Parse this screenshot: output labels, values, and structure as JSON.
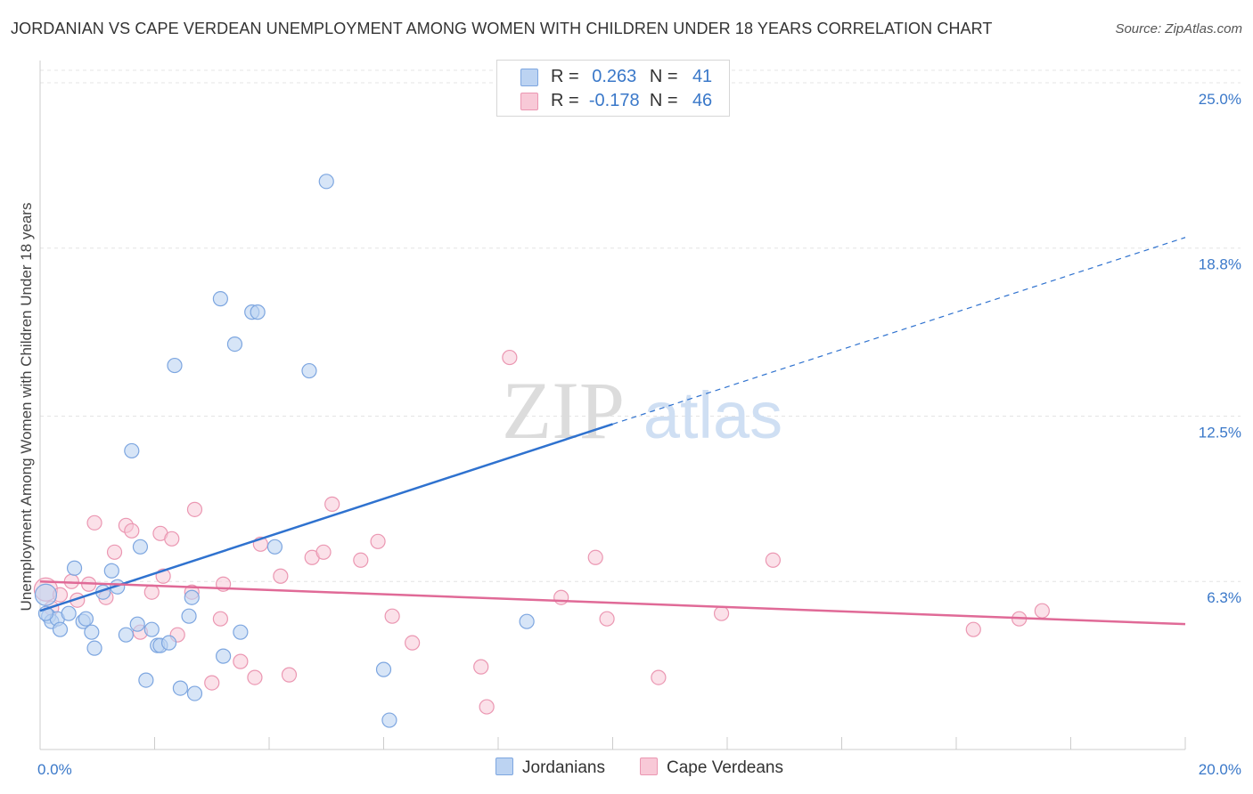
{
  "title": "JORDANIAN VS CAPE VERDEAN UNEMPLOYMENT AMONG WOMEN WITH CHILDREN UNDER 18 YEARS CORRELATION CHART",
  "source": "Source: ZipAtlas.com",
  "watermark": {
    "zip": "ZIP",
    "atlas": "atlas"
  },
  "legend": {
    "rows": [
      {
        "r_label": "R =",
        "r_value": "0.263",
        "n_label": "N =",
        "n_value": "41"
      },
      {
        "r_label": "R =",
        "r_value": "-0.178",
        "n_label": "N =",
        "n_value": "46"
      }
    ]
  },
  "bottom_legend": {
    "jordanians": "Jordanians",
    "cape_verdeans": "Cape Verdeans"
  },
  "colors": {
    "jordanian_fill": "#bcd3f2",
    "jordanian_stroke": "#7da6e0",
    "jordanian_line": "#2f72cf",
    "capeverdean_fill": "#f8c9d7",
    "capeverdean_stroke": "#eb97b2",
    "capeverdean_line": "#e06a97",
    "tick_label": "#3a78c9",
    "grid": "#e4e4e4"
  },
  "chart_data": {
    "type": "scatter",
    "title": "JORDANIAN VS CAPE VERDEAN UNEMPLOYMENT AMONG WOMEN WITH CHILDREN UNDER 18 YEARS CORRELATION CHART",
    "xlabel": "",
    "ylabel": "Unemployment Among Women with Children Under 18 years",
    "xlim": [
      0,
      20
    ],
    "ylim": [
      0,
      25.6
    ],
    "x_tick_labels": [
      "0.0%",
      "20.0%"
    ],
    "y_ticks": [
      6.3,
      12.5,
      18.8,
      25.0
    ],
    "y_tick_labels": [
      "6.3%",
      "12.5%",
      "18.8%",
      "25.0%"
    ],
    "grid": "horizontal dashed",
    "legend_placement": "top-center",
    "series": [
      {
        "name": "Jordanians",
        "r": 0.263,
        "n": 41,
        "trend": {
          "x0": 0,
          "y0": 5.2,
          "x1": 10,
          "y1": 12.2,
          "extended_x1": 20,
          "extended_y1": 19.2
        },
        "points": [
          [
            0.1,
            5.8
          ],
          [
            0.15,
            5.0
          ],
          [
            0.2,
            4.8
          ],
          [
            0.3,
            4.9
          ],
          [
            0.35,
            4.5
          ],
          [
            0.5,
            5.1
          ],
          [
            0.6,
            6.8
          ],
          [
            0.75,
            4.8
          ],
          [
            0.8,
            4.9
          ],
          [
            0.9,
            4.4
          ],
          [
            0.95,
            3.8
          ],
          [
            1.1,
            5.9
          ],
          [
            1.25,
            6.7
          ],
          [
            1.35,
            6.1
          ],
          [
            1.5,
            4.3
          ],
          [
            1.6,
            11.2
          ],
          [
            1.7,
            4.7
          ],
          [
            1.75,
            7.6
          ],
          [
            1.85,
            2.6
          ],
          [
            1.95,
            4.5
          ],
          [
            2.05,
            3.9
          ],
          [
            2.1,
            3.9
          ],
          [
            2.25,
            4.0
          ],
          [
            2.35,
            14.4
          ],
          [
            2.45,
            2.3
          ],
          [
            2.6,
            5.0
          ],
          [
            2.65,
            5.7
          ],
          [
            2.7,
            2.1
          ],
          [
            3.15,
            16.9
          ],
          [
            3.2,
            3.5
          ],
          [
            3.4,
            15.2
          ],
          [
            3.5,
            4.4
          ],
          [
            3.7,
            16.4
          ],
          [
            3.8,
            16.4
          ],
          [
            4.1,
            7.6
          ],
          [
            4.7,
            14.2
          ],
          [
            5.0,
            21.3
          ],
          [
            6.0,
            3.0
          ],
          [
            6.1,
            1.1
          ],
          [
            8.5,
            4.8
          ],
          [
            0.1,
            5.1
          ]
        ]
      },
      {
        "name": "Cape Verdeans",
        "r": -0.178,
        "n": 46,
        "trend": {
          "x0": 0,
          "y0": 6.3,
          "x1": 20,
          "y1": 4.7
        },
        "points": [
          [
            0.1,
            6.0
          ],
          [
            0.2,
            5.3
          ],
          [
            0.35,
            5.8
          ],
          [
            0.55,
            6.3
          ],
          [
            0.65,
            5.6
          ],
          [
            0.85,
            6.2
          ],
          [
            0.95,
            8.5
          ],
          [
            1.15,
            5.7
          ],
          [
            1.3,
            7.4
          ],
          [
            1.5,
            8.4
          ],
          [
            1.6,
            8.2
          ],
          [
            1.75,
            4.4
          ],
          [
            1.95,
            5.9
          ],
          [
            2.1,
            8.1
          ],
          [
            2.15,
            6.5
          ],
          [
            2.3,
            7.9
          ],
          [
            2.4,
            4.3
          ],
          [
            2.65,
            5.9
          ],
          [
            2.7,
            9.0
          ],
          [
            3.0,
            2.5
          ],
          [
            3.15,
            4.9
          ],
          [
            3.2,
            6.2
          ],
          [
            3.5,
            3.3
          ],
          [
            3.75,
            2.7
          ],
          [
            3.85,
            7.7
          ],
          [
            4.2,
            6.5
          ],
          [
            4.35,
            2.8
          ],
          [
            4.75,
            7.2
          ],
          [
            4.95,
            7.4
          ],
          [
            5.1,
            9.2
          ],
          [
            5.6,
            7.1
          ],
          [
            5.9,
            7.8
          ],
          [
            6.15,
            5.0
          ],
          [
            6.5,
            4.0
          ],
          [
            7.7,
            3.1
          ],
          [
            7.8,
            1.6
          ],
          [
            8.2,
            14.7
          ],
          [
            9.1,
            5.7
          ],
          [
            9.7,
            7.2
          ],
          [
            9.9,
            4.9
          ],
          [
            10.8,
            2.7
          ],
          [
            11.9,
            5.1
          ],
          [
            12.8,
            7.1
          ],
          [
            16.3,
            4.5
          ],
          [
            17.1,
            4.9
          ],
          [
            17.5,
            5.2
          ]
        ]
      }
    ]
  }
}
